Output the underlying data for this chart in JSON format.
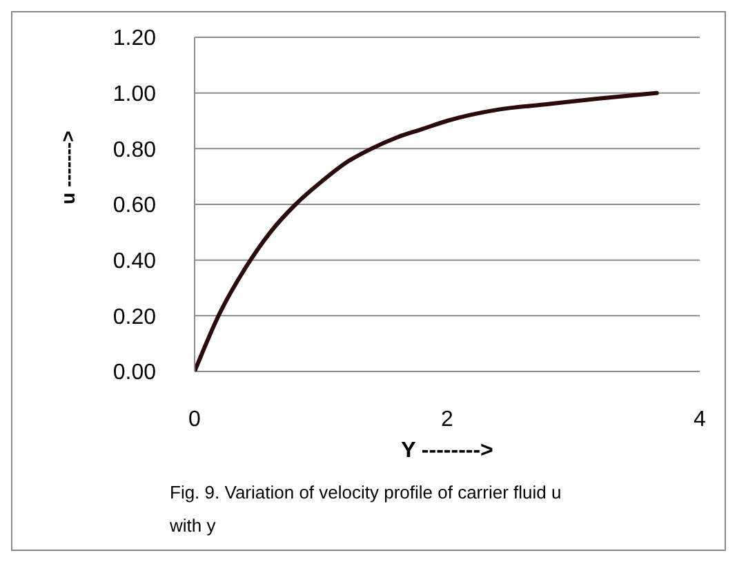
{
  "chart_data": {
    "type": "line",
    "xlabel": "Y -------->",
    "ylabel": "u ------->",
    "annotations": [
      "Fig. 9. Variation of velocity profile  of carrier fluid u with y"
    ],
    "series": [
      {
        "color": "#2b0a0a",
        "x": [
          0,
          0.2,
          0.4,
          0.6,
          0.8,
          1.0,
          1.2,
          1.4,
          1.6,
          1.8,
          2.0,
          2.4,
          2.8,
          3.2,
          3.66
        ],
        "values": [
          0,
          0.21,
          0.37,
          0.5,
          0.6,
          0.68,
          0.75,
          0.8,
          0.84,
          0.87,
          0.9,
          0.94,
          0.96,
          0.98,
          1.0
        ]
      }
    ],
    "xlim": [
      0,
      4
    ],
    "xticks": [
      0,
      2,
      4
    ],
    "ylim": [
      0,
      1.2
    ],
    "yticks": [
      {
        "value": 0,
        "label": "0.00"
      },
      {
        "value": 0.2,
        "label": "0.20"
      },
      {
        "value": 0.4,
        "label": "0.40"
      },
      {
        "value": 0.6,
        "label": "0.60"
      },
      {
        "value": 0.8,
        "label": "0.80"
      },
      {
        "value": 1.0,
        "label": "1.00"
      },
      {
        "value": 1.2,
        "label": "1.20"
      }
    ],
    "grid": "y",
    "legend": false,
    "marker": "none",
    "line_style": "solid"
  }
}
